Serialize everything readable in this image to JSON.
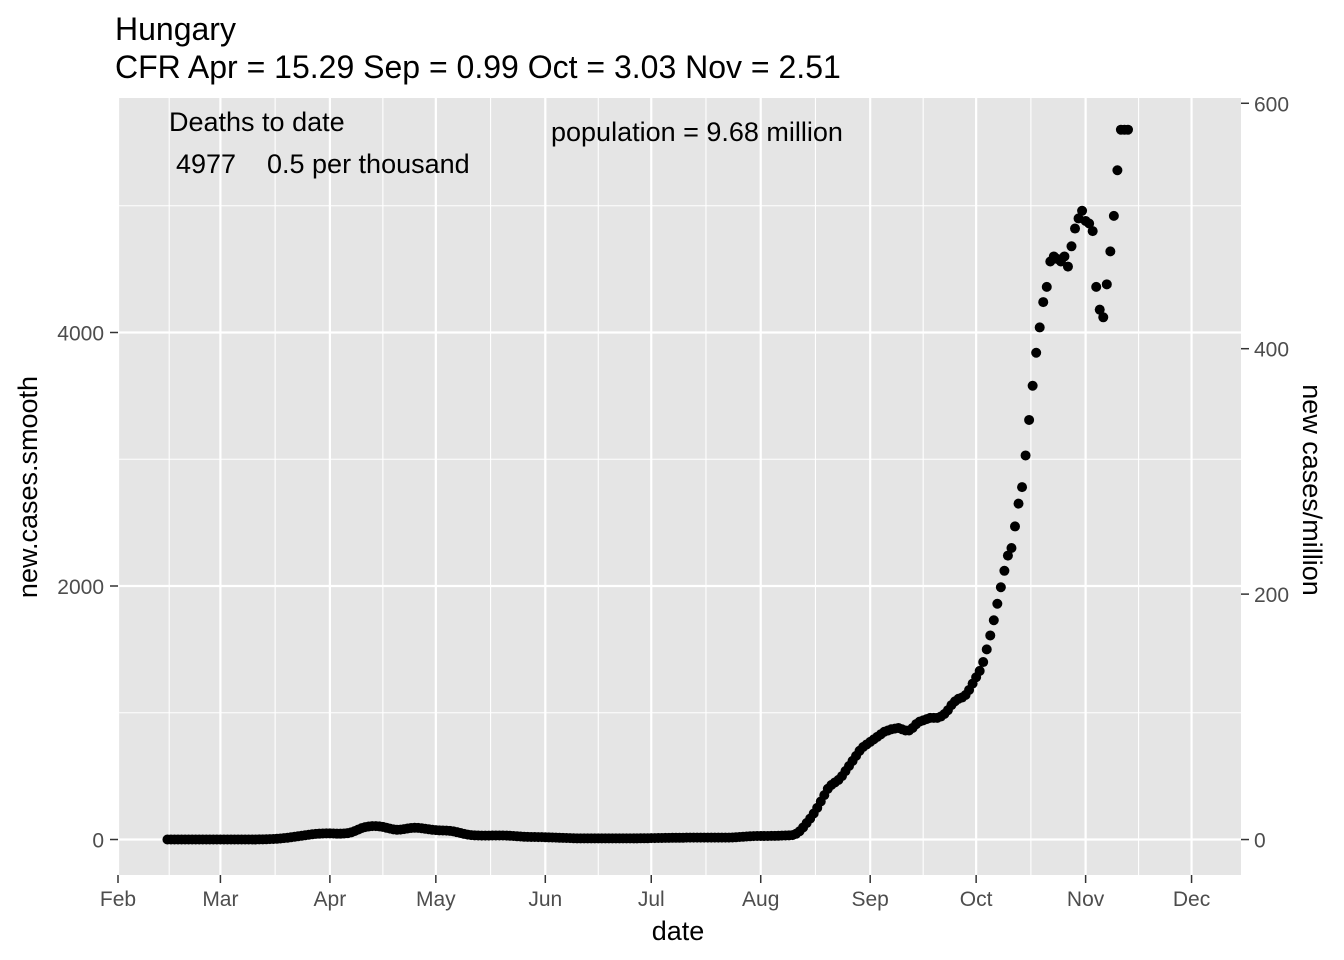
{
  "chart_data": {
    "type": "scatter",
    "title": "Hungary",
    "subtitle": "CFR Apr = 15.29  Sep = 0.99  Oct = 3.03  Nov = 2.51",
    "xlabel": "date",
    "ylabel": "new.cases.smooth",
    "ylabel_right": "new cases/million",
    "annotations": {
      "deaths_heading": "Deaths to date",
      "deaths_count": "4977",
      "deaths_rate": "0.5 per thousand",
      "population": "population = 9.68 million"
    },
    "x_ticks": [
      "Feb",
      "Mar",
      "Apr",
      "May",
      "Jun",
      "Jul",
      "Aug",
      "Sep",
      "Oct",
      "Nov",
      "Dec"
    ],
    "x_tick_dates": [
      "2020-02-01",
      "2020-03-01",
      "2020-04-01",
      "2020-05-01",
      "2020-06-01",
      "2020-07-01",
      "2020-08-01",
      "2020-09-01",
      "2020-10-01",
      "2020-11-01",
      "2020-12-01"
    ],
    "y_ticks": [
      "0",
      "2000",
      "4000"
    ],
    "y_ticks_right": [
      "0",
      "200",
      "400",
      "600"
    ],
    "xlim": [
      "2020-02-01",
      "2020-12-15"
    ],
    "ylim": [
      -280,
      5850
    ],
    "ylim_right": [
      -28.9,
      604.3
    ],
    "grid": true,
    "panel_color": "#e5e5e5",
    "point_color": "#000000",
    "series": [
      {
        "start_date": "2020-02-15",
        "values": [
          0,
          0,
          0,
          0,
          0,
          0,
          0,
          0,
          0,
          0,
          0,
          0,
          0,
          0,
          0,
          0,
          0,
          0,
          0,
          0,
          0,
          0,
          0,
          0,
          0,
          0,
          1,
          1,
          2,
          3,
          4,
          6,
          8,
          11,
          14,
          18,
          22,
          26,
          30,
          34,
          38,
          41,
          44,
          46,
          47,
          48,
          48,
          47,
          46,
          46,
          47,
          50,
          56,
          66,
          78,
          90,
          98,
          103,
          106,
          106,
          104,
          100,
          93,
          86,
          80,
          77,
          78,
          82,
          87,
          91,
          93,
          92,
          89,
          85,
          81,
          77,
          74,
          72,
          71,
          70,
          68,
          64,
          58,
          51,
          44,
          39,
          35,
          33,
          32,
          31,
          31,
          31,
          32,
          32,
          32,
          32,
          31,
          30,
          28,
          26,
          24,
          22,
          21,
          20,
          20,
          19,
          19,
          18,
          17,
          16,
          15,
          14,
          13,
          12,
          11,
          10,
          9,
          9,
          9,
          9,
          9,
          9,
          9,
          9,
          9,
          9,
          9,
          9,
          9,
          9,
          9,
          9,
          9,
          9,
          10,
          10,
          10,
          11,
          11,
          12,
          12,
          13,
          13,
          14,
          14,
          14,
          14,
          15,
          15,
          15,
          15,
          15,
          15,
          15,
          15,
          15,
          15,
          15,
          15,
          15,
          16,
          18,
          20,
          22,
          24,
          26,
          27,
          28,
          28,
          28,
          28,
          29,
          29,
          30,
          31,
          32,
          33,
          35,
          45,
          65,
          95,
          130,
          165,
          205,
          250,
          300,
          350,
          400,
          430,
          450,
          470,
          500,
          540,
          580,
          620,
          660,
          700,
          730,
          750,
          770,
          790,
          810,
          830,
          850,
          860,
          870,
          875,
          880,
          870,
          860,
          860,
          880,
          910,
          930,
          940,
          950,
          960,
          960,
          960,
          970,
          990,
          1020,
          1060,
          1090,
          1110,
          1120,
          1140,
          1180,
          1230,
          1280,
          1330,
          1400,
          1500,
          1610,
          1730,
          1860,
          1990,
          2120,
          2240,
          2300,
          2470,
          2650,
          2780,
          3030,
          3310,
          3580,
          3840,
          4040,
          4240,
          4360,
          4560,
          4600,
          4580,
          4560,
          4600,
          4520,
          4680,
          4820,
          4900,
          4960,
          4880,
          4860,
          4800,
          4360,
          4180,
          4120,
          4380,
          4640,
          4920,
          5280,
          5600,
          5600,
          5600
        ]
      }
    ]
  }
}
